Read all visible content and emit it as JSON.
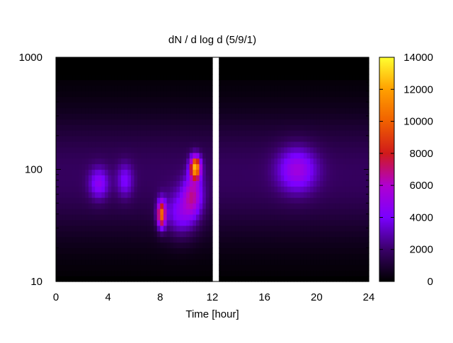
{
  "chart_data": {
    "type": "heatmap",
    "title": "dN / d log d (5/9/1)",
    "xlabel": "Time [hour]",
    "ylabel": "",
    "xlim": [
      0,
      24
    ],
    "ylim": [
      10,
      1000
    ],
    "y_scale": "log",
    "grid": false,
    "x_ticks": [
      "0",
      "4",
      "8",
      "12",
      "16",
      "20",
      "24"
    ],
    "x_tick_values": [
      0,
      4,
      8,
      12,
      16,
      20,
      24
    ],
    "y_ticks": [
      "10",
      "100",
      "1000"
    ],
    "y_tick_values": [
      10,
      100,
      1000
    ],
    "colorbar": {
      "range": [
        0,
        14000
      ],
      "ticks": [
        "0",
        "2000",
        "4000",
        "6000",
        "8000",
        "10000",
        "12000",
        "14000"
      ],
      "tick_values": [
        0,
        2000,
        4000,
        6000,
        8000,
        10000,
        12000,
        14000
      ],
      "colormap": [
        "#000000",
        "#3a0068",
        "#7a00ff",
        "#b000d0",
        "#d01a1a",
        "#f06000",
        "#ffa000",
        "#ffff30"
      ]
    },
    "background_level": 1800,
    "features": [
      {
        "time": 8.1,
        "diameter": 40,
        "peak": 8500,
        "time_width": 0.13,
        "size_width": 0.12
      },
      {
        "time": 10.7,
        "diameter": 105,
        "peak": 10500,
        "time_width": 0.16,
        "size_width": 0.1
      },
      {
        "time": 10.5,
        "diameter": 60,
        "peak": 4200,
        "time_width": 0.3,
        "size_width": 0.18
      },
      {
        "time": 3.3,
        "diameter": 75,
        "peak": 3000,
        "time_width": 0.3,
        "size_width": 0.14
      },
      {
        "time": 18.5,
        "diameter": 100,
        "peak": 3600,
        "time_width": 0.6,
        "size_width": 0.2
      },
      {
        "time": 9.6,
        "diameter": 40,
        "peak": 3200,
        "time_width": 0.5,
        "size_width": 0.2
      },
      {
        "time": 5.3,
        "diameter": 80,
        "peak": 2400,
        "time_width": 0.25,
        "size_width": 0.15
      }
    ],
    "gaps": [
      {
        "time_start": 12.1,
        "time_end": 12.4
      }
    ]
  }
}
